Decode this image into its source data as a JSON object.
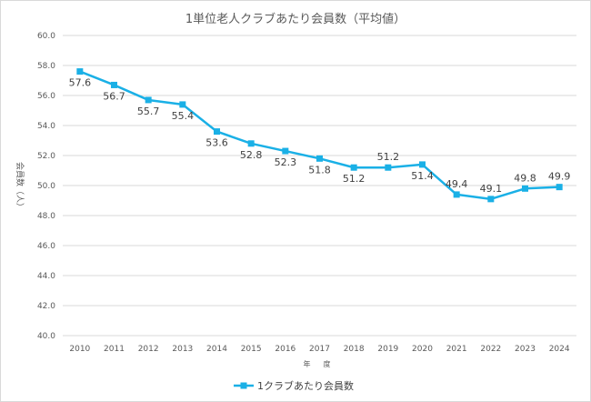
{
  "chart_data": {
    "type": "line",
    "title": "1単位老人クラブあたり会員数（平均値）",
    "xlabel": "年　度",
    "ylabel": "会員数（人）",
    "ylim": [
      40.0,
      60.0
    ],
    "ytick_step": 2.0,
    "grid": true,
    "legend_position": "bottom",
    "categories": [
      "2010",
      "2011",
      "2012",
      "2013",
      "2014",
      "2015",
      "2016",
      "2017",
      "2018",
      "2019",
      "2020",
      "2021",
      "2022",
      "2023",
      "2024"
    ],
    "series": [
      {
        "name": "1クラブあたり会員数",
        "color": "#1ab0e6",
        "values": [
          57.6,
          56.7,
          55.7,
          55.4,
          53.6,
          52.8,
          52.3,
          51.8,
          51.2,
          51.2,
          51.4,
          49.4,
          49.1,
          49.8,
          49.9
        ],
        "label_position": [
          "below",
          "below",
          "below",
          "below",
          "below",
          "below",
          "below",
          "below",
          "below",
          "above",
          "below",
          "above",
          "above",
          "above",
          "above"
        ]
      }
    ]
  }
}
